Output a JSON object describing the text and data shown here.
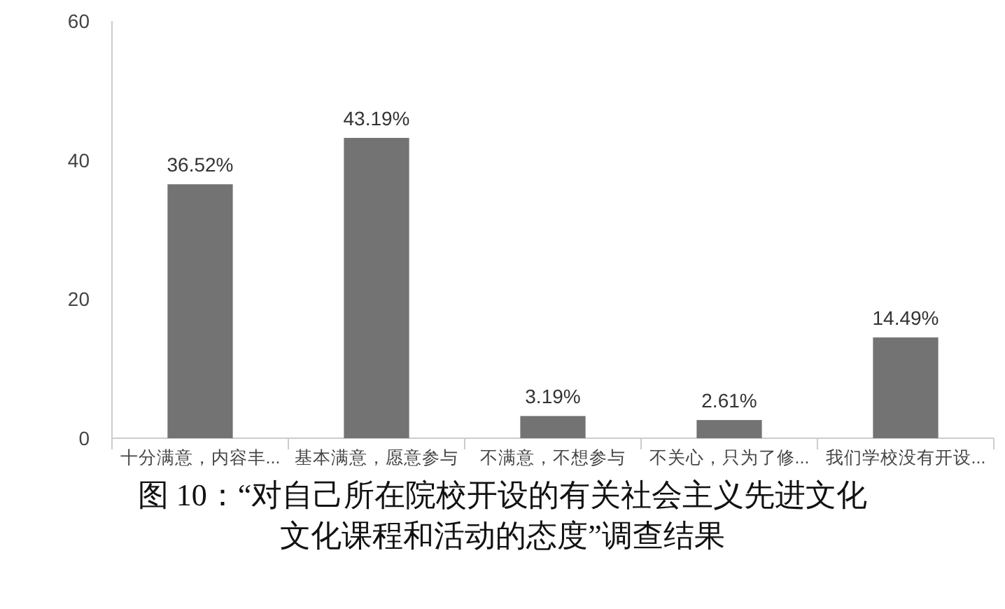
{
  "chart_data": {
    "type": "bar",
    "title": "图 10：“对自己所在院校开设的有关社会主义先进文化文化课程和活动的态度”调查结果",
    "categories": [
      "十分满意，内容丰...",
      "基本满意，愿意参与",
      "不满意，不想参与",
      "不关心，只为了修...",
      "我们学校没有开设..."
    ],
    "values": [
      36.52,
      43.19,
      3.19,
      2.61,
      14.49
    ],
    "value_labels": [
      "36.52%",
      "43.19%",
      "3.19%",
      "2.61%",
      "14.49%"
    ],
    "color": "#737373",
    "ylim": [
      0,
      60
    ],
    "yticks": [
      0,
      20,
      40,
      60
    ]
  }
}
